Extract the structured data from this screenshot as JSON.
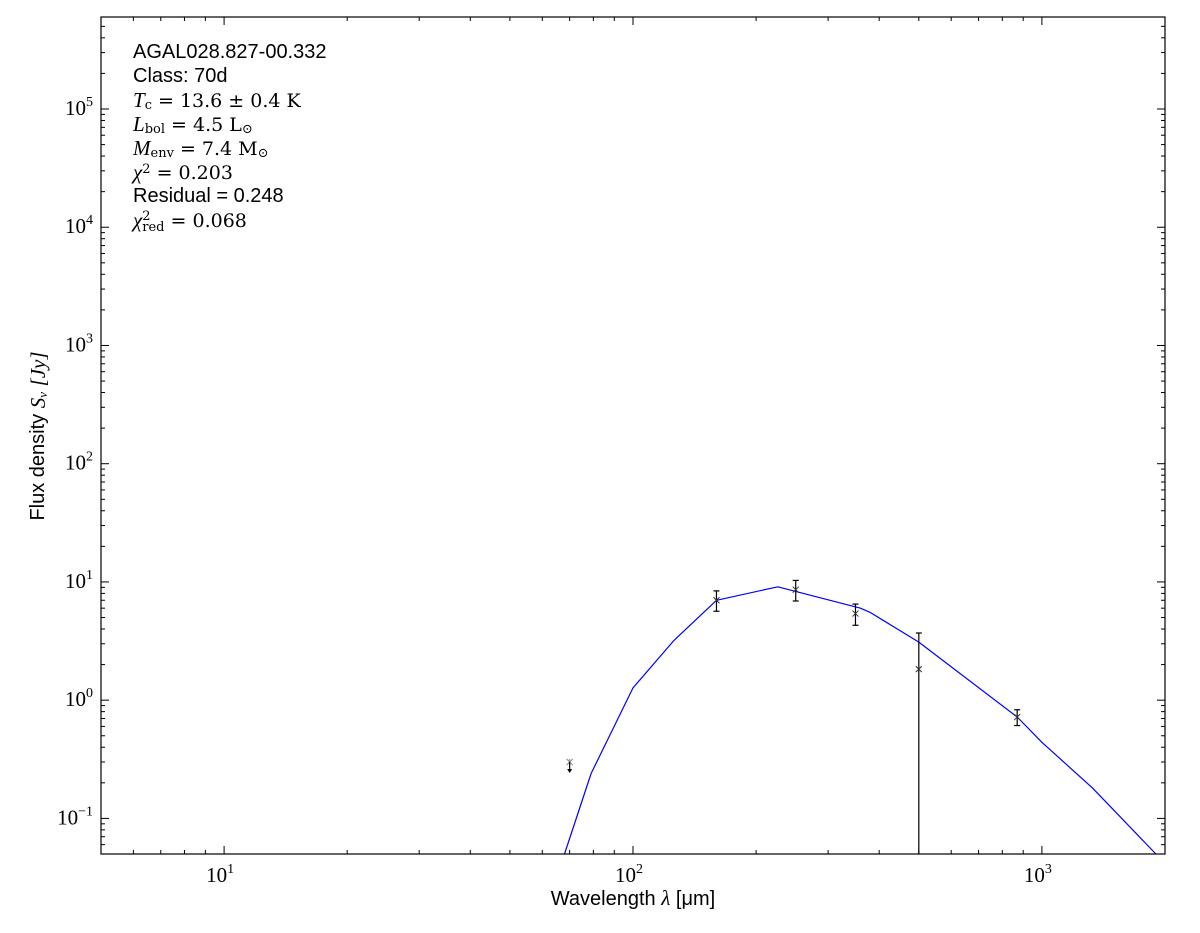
{
  "chart_data": {
    "type": "scatter",
    "xscale": "log",
    "yscale": "log",
    "xlim": [
      5,
      2000
    ],
    "ylim": [
      0.05,
      600000
    ],
    "grid": false,
    "xlabel": {
      "text": "Wavelength ",
      "symbol": "λ",
      "unit": "[μm]"
    },
    "ylabel": {
      "text": "Flux density ",
      "symbol": "S",
      "sub": "ν",
      "unit": "[Jy]"
    },
    "xticks": [
      {
        "base": "10",
        "exp": "1",
        "value": 10
      },
      {
        "base": "10",
        "exp": "2",
        "value": 100
      },
      {
        "base": "10",
        "exp": "3",
        "value": 1000
      }
    ],
    "yticks": [
      {
        "base": "10",
        "exp": "−1",
        "value": 0.1
      },
      {
        "base": "10",
        "exp": "0",
        "value": 1
      },
      {
        "base": "10",
        "exp": "1",
        "value": 10
      },
      {
        "base": "10",
        "exp": "2",
        "value": 100
      },
      {
        "base": "10",
        "exp": "3",
        "value": 1000
      },
      {
        "base": "10",
        "exp": "4",
        "value": 10000
      },
      {
        "base": "10",
        "exp": "5",
        "value": 100000
      }
    ],
    "measurements": [
      {
        "x": 160,
        "y": 7.0,
        "ylo": 5.65,
        "yhi": 8.4
      },
      {
        "x": 250,
        "y": 8.6,
        "ylo": 6.9,
        "yhi": 10.3
      },
      {
        "x": 350,
        "y": 5.4,
        "ylo": 4.3,
        "yhi": 6.5
      },
      {
        "x": 500,
        "y": 1.83,
        "ylo": 0.001,
        "yhi": 3.7
      },
      {
        "x": 870,
        "y": 0.72,
        "ylo": 0.61,
        "yhi": 0.83
      }
    ],
    "upper_limits": [
      {
        "x": 70,
        "y": 0.3
      }
    ],
    "model_curve": {
      "color": "#0000ff",
      "x": [
        68,
        79,
        100,
        126,
        160,
        226,
        360,
        381,
        500,
        870,
        1000,
        1331,
        1900
      ],
      "y": [
        0.05,
        0.24,
        1.27,
        3.2,
        7.0,
        9.1,
        6.0,
        5.5,
        3.1,
        0.72,
        0.44,
        0.18,
        0.05
      ]
    },
    "annotations": {
      "source": "AGAL028.827-00.332",
      "class": "Class: 70d",
      "tc": {
        "symbol": "T",
        "sub": "c",
        "text": " = 13.6 ± 0.4 K"
      },
      "lbol": {
        "symbol": "L",
        "sub": "bol",
        "text": " = 4.5 L",
        "unit_sub": "⊙"
      },
      "menv": {
        "symbol": "M",
        "sub": "env",
        "text": " = 7.4 M",
        "unit_sub": "⊙"
      },
      "chi2": {
        "symbol": "χ",
        "sup": "2",
        "text": " = 0.203"
      },
      "residual": "Residual = 0.248",
      "chi2red": {
        "symbol": "χ",
        "sup": "2",
        "sub": "red",
        "text": " = 0.068"
      }
    }
  }
}
